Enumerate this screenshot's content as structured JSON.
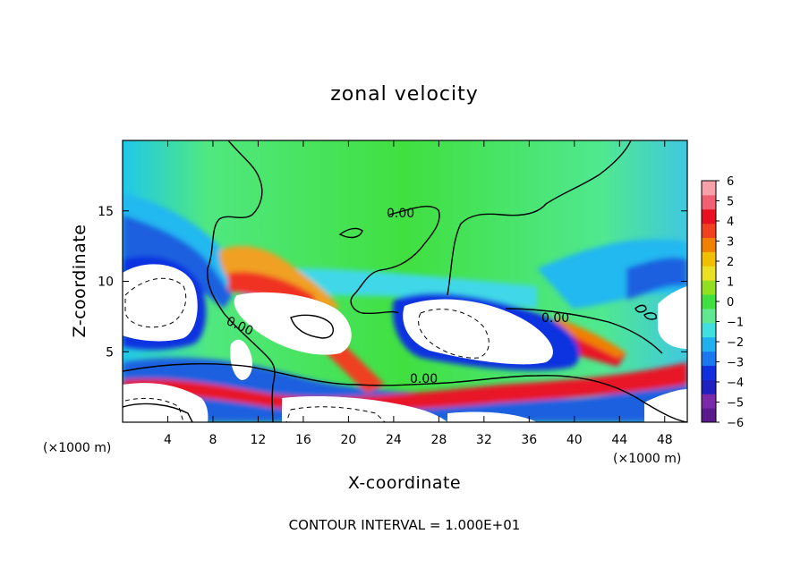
{
  "chart_data": {
    "type": "heatmap",
    "title": "zonal velocity",
    "xlabel": "X-coordinate",
    "ylabel": "Z-coordinate",
    "x_unit": "(×1000 m)",
    "y_unit": "(×1000 m)",
    "xlim": [
      0,
      50
    ],
    "ylim": [
      0,
      20
    ],
    "x_ticks": [
      4,
      8,
      12,
      16,
      20,
      24,
      28,
      32,
      36,
      40,
      44,
      48
    ],
    "y_ticks": [
      5,
      10,
      15
    ],
    "colorbar": {
      "min": -6,
      "max": 6,
      "ticks": [
        6,
        5,
        4,
        3,
        2,
        1,
        0,
        -1,
        -2,
        -3,
        -4,
        -5,
        -6
      ],
      "colors": [
        "#5a1a8c",
        "#7a2aa8",
        "#2020c0",
        "#1030e0",
        "#1a78f0",
        "#20b0f0",
        "#40e0e0",
        "#60e890",
        "#40e040",
        "#90e020",
        "#e8e020",
        "#f0c000",
        "#f08000",
        "#f04020",
        "#e81020",
        "#f06070",
        "#f8a0a8"
      ]
    },
    "contour_interval": "CONTOUR INTERVAL = 1.000E+01",
    "contour_labels": [
      {
        "text": "0.00",
        "x": 24.5,
        "z": 14.7
      },
      {
        "text": "0.00",
        "x": 40.0,
        "z": 7.5
      },
      {
        "text": "0.00",
        "x": 10.5,
        "z": 6.8
      },
      {
        "text": "0.00",
        "x": 27.0,
        "z": 3.0
      }
    ]
  }
}
